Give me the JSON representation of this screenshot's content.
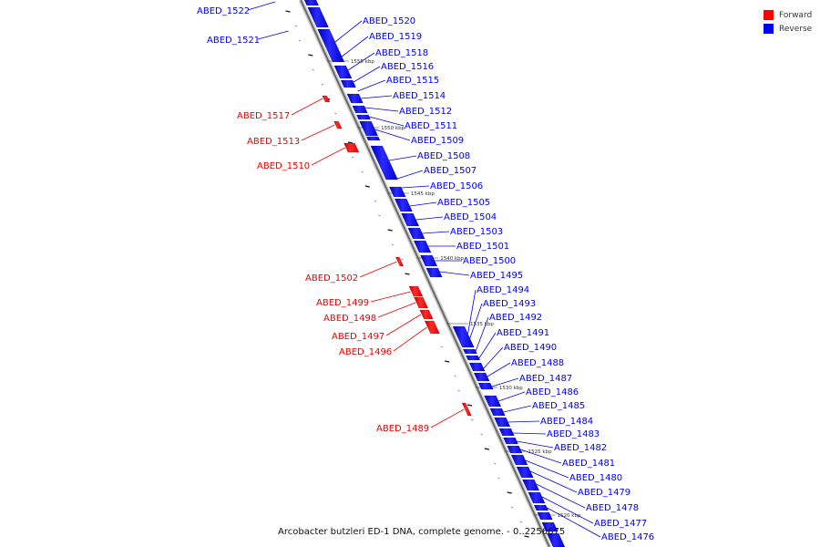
{
  "colors": {
    "forward": "#ee0000",
    "reverse": "#0000ee",
    "backbone": "#888888"
  },
  "legend": [
    {
      "label": "Forward",
      "color": "#ff0000"
    },
    {
      "label": "Reverse",
      "color": "#0000ff"
    }
  ],
  "caption": "Arcobacter butzleri ED-1 DNA, complete genome. - 0..2256675",
  "scale_labels": [
    "1555 kbp",
    "1550 kbp",
    "1545 kbp",
    "1540 kbp",
    "1535 kbp",
    "1530 kbp",
    "1525 kbp",
    "1520 kbp"
  ],
  "reverse_genes": [
    "ABED_1520",
    "ABED_1519",
    "ABED_1518",
    "ABED_1516",
    "ABED_1515",
    "ABED_1514",
    "ABED_1512",
    "ABED_1511",
    "ABED_1509",
    "ABED_1508",
    "ABED_1507",
    "ABED_1506",
    "ABED_1505",
    "ABED_1504",
    "ABED_1503",
    "ABED_1501",
    "ABED_1500",
    "ABED_1495",
    "ABED_1494",
    "ABED_1493",
    "ABED_1492",
    "ABED_1491",
    "ABED_1490",
    "ABED_1488",
    "ABED_1487",
    "ABED_1486",
    "ABED_1485",
    "ABED_1484",
    "ABED_1483",
    "ABED_1482",
    "ABED_1481",
    "ABED_1480",
    "ABED_1479",
    "ABED_1478",
    "ABED_1477",
    "ABED_1476"
  ],
  "forward_genes": [
    "ABED_1517",
    "ABED_1513",
    "ABED_1510",
    "ABED_1502",
    "ABED_1499",
    "ABED_1498",
    "ABED_1497",
    "ABED_1496",
    "ABED_1489"
  ],
  "offtrack_reverse_genes": [
    "ABED_1522",
    "ABED_1521"
  ]
}
